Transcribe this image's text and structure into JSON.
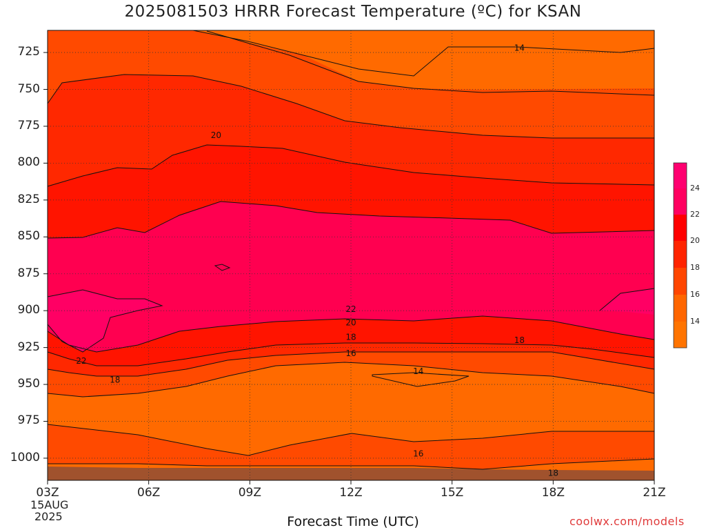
{
  "title": "2025081503 HRRR Forecast Temperature (ºC) for KSAN",
  "credit": "coolwx.com/models",
  "chart_data": {
    "type": "contour",
    "title": "2025081503 HRRR Forecast Temperature (ºC) for KSAN",
    "xlabel": "Forecast Time (UTC)",
    "ylabel": "",
    "x_ticks": [
      "03Z",
      "06Z",
      "09Z",
      "12Z",
      "15Z",
      "18Z",
      "21Z"
    ],
    "x_start_date": [
      "15AUG",
      "2025"
    ],
    "x_hours": [
      3,
      21
    ],
    "y_ticks": [
      725,
      750,
      775,
      800,
      825,
      850,
      875,
      900,
      925,
      950,
      975,
      1000
    ],
    "y_range_hPa": [
      1015,
      710
    ],
    "grid": true,
    "contour_levels": [
      14,
      16,
      18,
      20,
      22,
      24
    ],
    "fill_colors": {
      "<14": "#ff7400",
      "14-16": "#ff6600",
      "16-18": "#ff4600",
      "18-20": "#ff2400",
      "20-22": "#ff0000",
      "22-24": "#ff0060",
      ">24": "#ff0070"
    },
    "ground_color": "#a0522d",
    "contour_labels": [
      {
        "value": "14",
        "hour": 17,
        "p": 722
      },
      {
        "value": "20",
        "hour": 8,
        "p": 781
      },
      {
        "value": "22",
        "hour": 12,
        "p": 899
      },
      {
        "value": "20",
        "hour": 12,
        "p": 908
      },
      {
        "value": "18",
        "hour": 12,
        "p": 918
      },
      {
        "value": "16",
        "hour": 12,
        "p": 929
      },
      {
        "value": "14",
        "hour": 14,
        "p": 941
      },
      {
        "value": "18",
        "hour": 17,
        "p": 920
      },
      {
        "value": "22",
        "hour": 4,
        "p": 934
      },
      {
        "value": "18",
        "hour": 5,
        "p": 947
      },
      {
        "value": "16",
        "hour": 14,
        "p": 997
      },
      {
        "value": "18",
        "hour": 18,
        "p": 1010
      }
    ],
    "colorbar": {
      "labels": [
        "24",
        "22",
        "20",
        "18",
        "16",
        "14"
      ]
    }
  }
}
